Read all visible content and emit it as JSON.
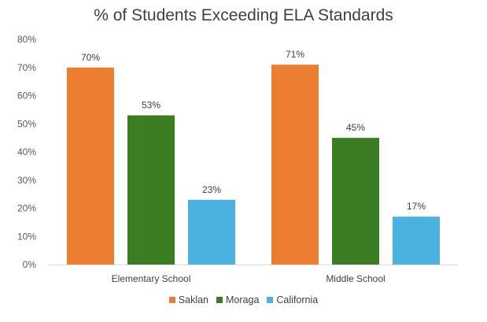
{
  "chart_data": {
    "type": "bar",
    "title": "% of Students Exceeding ELA Standards",
    "xlabel": "",
    "ylabel": "",
    "categories": [
      "Elementary School",
      "Middle School"
    ],
    "series": [
      {
        "name": "Saklan",
        "color": "#ED7D31",
        "values": [
          70,
          71
        ],
        "labels": [
          "70%",
          "71%"
        ]
      },
      {
        "name": "Moraga",
        "color": "#3A7D22",
        "values": [
          53,
          45
        ],
        "labels": [
          "53%",
          "45%"
        ]
      },
      {
        "name": "California",
        "color": "#4AB1E0",
        "values": [
          23,
          17
        ],
        "labels": [
          "23%",
          "17%"
        ]
      }
    ],
    "ylim": [
      0,
      80
    ],
    "yticks": [
      0,
      10,
      20,
      30,
      40,
      50,
      60,
      70,
      80
    ],
    "ytick_labels": [
      "0%",
      "10%",
      "20%",
      "30%",
      "40%",
      "50%",
      "60%",
      "70%",
      "80%"
    ],
    "grid": false,
    "legend_position": "bottom"
  }
}
